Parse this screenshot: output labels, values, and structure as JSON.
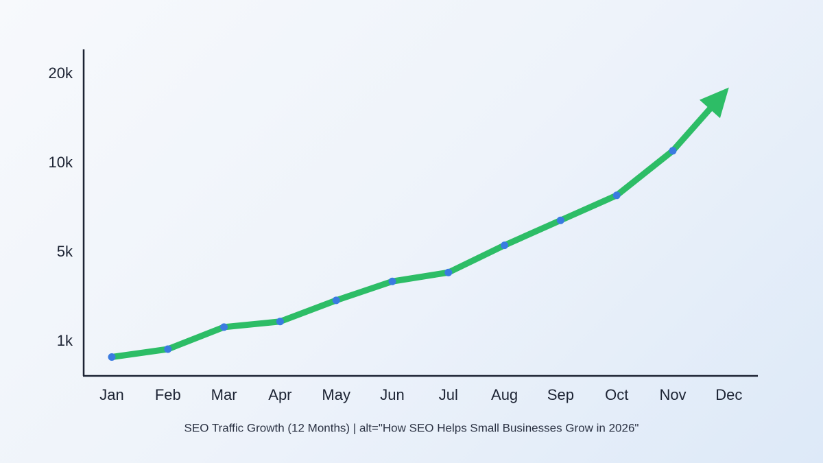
{
  "chart_data": {
    "type": "line",
    "caption": "SEO Traffic Growth (12 Months) | alt=\"How SEO Helps Small Businesses Grow in 2026\"",
    "categories": [
      "Jan",
      "Feb",
      "Mar",
      "Apr",
      "May",
      "Jun",
      "Jul",
      "Aug",
      "Sep",
      "Oct",
      "Nov",
      "Dec"
    ],
    "values": [
      550,
      780,
      1650,
      1900,
      2850,
      3700,
      4100,
      5400,
      6800,
      8200,
      11400,
      18500
    ],
    "color": "#2dbd66",
    "marker_color": "#3a7be0",
    "ylim": [
      0,
      23000
    ],
    "yticks": [
      {
        "value": 1000,
        "label": "1k"
      },
      {
        "value": 5000,
        "label": "5k"
      },
      {
        "value": 10000,
        "label": "10k"
      },
      {
        "value": 20000,
        "label": "20k"
      }
    ],
    "grid": false
  }
}
